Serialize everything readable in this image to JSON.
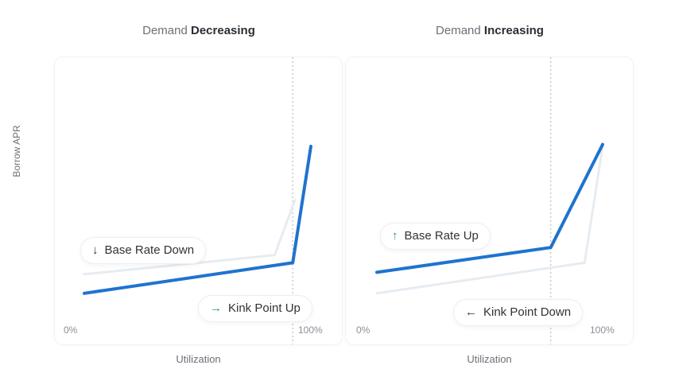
{
  "chart_data": [
    {
      "type": "line",
      "title_prefix": "Demand ",
      "title_bold": "Decreasing",
      "xlabel": "Utilization",
      "ylabel": "Borrow APR",
      "xlim": [
        0,
        100
      ],
      "ylim": [
        0,
        100
      ],
      "x_tick_labels": [
        "0%",
        "100%"
      ],
      "series": [
        {
          "role": "previous",
          "x": [
            0,
            84,
            93
          ],
          "y": [
            23,
            33,
            62
          ]
        },
        {
          "role": "current",
          "x": [
            0,
            92,
            100
          ],
          "y": [
            13,
            29,
            90
          ]
        }
      ],
      "kink_x": 92,
      "annotations": [
        {
          "arrow": "↓",
          "direction": "down",
          "text": "Base Rate Down"
        },
        {
          "arrow": "→",
          "direction": "right",
          "text": "Kink Point Up"
        }
      ]
    },
    {
      "type": "line",
      "title_prefix": "Demand ",
      "title_bold": "Increasing",
      "xlabel": "Utilization",
      "ylabel": "Borrow APR",
      "xlim": [
        0,
        100
      ],
      "ylim": [
        0,
        100
      ],
      "x_tick_labels": [
        "0%",
        "100%"
      ],
      "series": [
        {
          "role": "previous",
          "x": [
            0,
            92,
            100
          ],
          "y": [
            13,
            29,
            90
          ]
        },
        {
          "role": "current",
          "x": [
            0,
            77,
            100
          ],
          "y": [
            24,
            37,
            91
          ]
        }
      ],
      "kink_x": 77,
      "annotations": [
        {
          "arrow": "↑",
          "direction": "up",
          "text": "Base Rate Up"
        },
        {
          "arrow": "←",
          "direction": "left",
          "text": "Kink Point Down"
        }
      ]
    }
  ],
  "colors": {
    "current_line": "#1f73cf",
    "previous_line": "#e6ecf1",
    "kink_line": "#b9bec4"
  }
}
